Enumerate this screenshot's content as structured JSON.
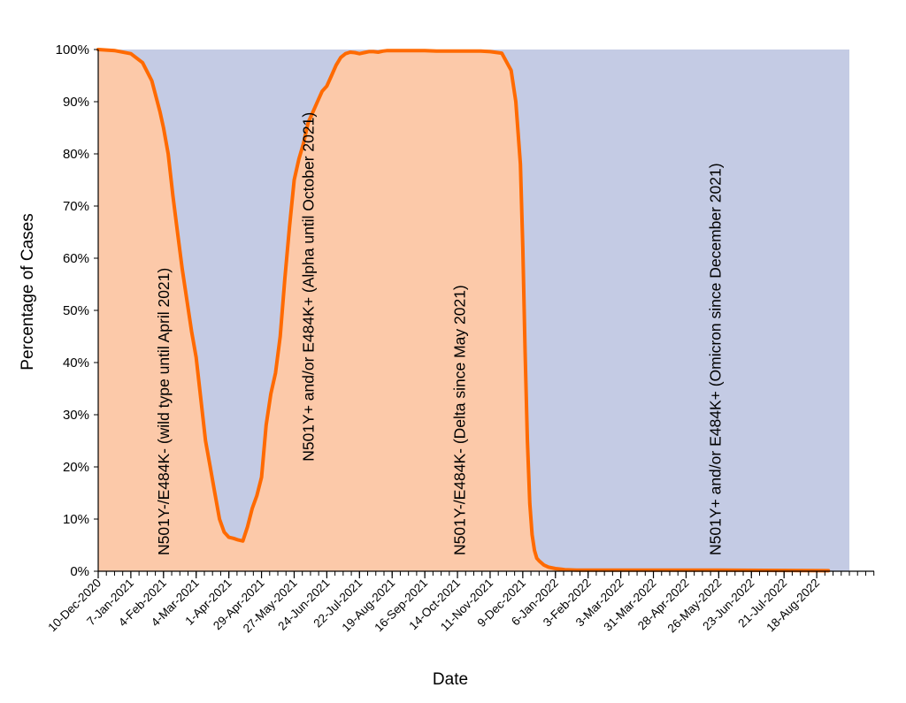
{
  "chart_data": {
    "type": "area",
    "xlabel": "Date",
    "ylabel": "Percentage of Cases",
    "xlim": [
      "2020-12-10",
      "2022-09-15"
    ],
    "ylim": [
      0,
      100
    ],
    "legend": "none",
    "grid": false,
    "yticks": [
      0,
      10,
      20,
      30,
      40,
      50,
      60,
      70,
      80,
      90,
      100
    ],
    "ytick_labels": [
      "0%",
      "10%",
      "20%",
      "30%",
      "40%",
      "50%",
      "60%",
      "70%",
      "80%",
      "90%",
      "100%"
    ],
    "xticks": [
      "2020-12-10",
      "2021-01-07",
      "2021-02-04",
      "2021-03-04",
      "2021-04-01",
      "2021-04-29",
      "2021-05-27",
      "2021-06-24",
      "2021-07-22",
      "2021-08-19",
      "2021-09-16",
      "2021-10-14",
      "2021-11-11",
      "2021-12-09",
      "2022-01-06",
      "2022-02-03",
      "2022-03-03",
      "2022-03-31",
      "2022-04-28",
      "2022-05-26",
      "2022-06-23",
      "2022-07-21",
      "2022-08-18"
    ],
    "xtick_labels": [
      "10-Dec-2020",
      "7-Jan-2021",
      "4-Feb-2021",
      "4-Mar-2021",
      "1-Apr-2021",
      "29-Apr-2021",
      "27-May-2021",
      "24-Jun-2021",
      "22-Jul-2021",
      "19-Aug-2021",
      "16-Sep-2021",
      "14-Oct-2021",
      "11-Nov-2021",
      "9-Dec-2021",
      "6-Jan-2022",
      "3-Feb-2022",
      "3-Mar-2022",
      "31-Mar-2022",
      "28-Apr-2022",
      "26-May-2022",
      "23-Jun-2022",
      "21-Jul-2022",
      "18-Aug-2022"
    ],
    "series": [
      {
        "x": [
          "2020-12-10",
          "2020-12-24",
          "2021-01-07",
          "2021-01-17",
          "2021-01-25",
          "2021-02-01",
          "2021-02-04",
          "2021-02-08",
          "2021-02-12",
          "2021-02-16",
          "2021-02-20",
          "2021-02-24",
          "2021-02-28",
          "2021-03-04",
          "2021-03-08",
          "2021-03-12",
          "2021-03-16",
          "2021-03-20",
          "2021-03-24",
          "2021-03-28",
          "2021-04-01",
          "2021-04-05",
          "2021-04-09",
          "2021-04-13",
          "2021-04-17",
          "2021-04-21",
          "2021-04-25",
          "2021-04-29",
          "2021-05-03",
          "2021-05-07",
          "2021-05-11",
          "2021-05-15",
          "2021-05-19",
          "2021-05-23",
          "2021-05-27",
          "2021-05-31",
          "2021-06-04",
          "2021-06-08",
          "2021-06-12",
          "2021-06-16",
          "2021-06-20",
          "2021-06-24",
          "2021-06-28",
          "2021-07-02",
          "2021-07-06",
          "2021-07-10",
          "2021-07-14",
          "2021-07-18",
          "2021-07-22",
          "2021-07-26",
          "2021-07-30",
          "2021-08-03",
          "2021-08-07",
          "2021-08-11",
          "2021-08-15",
          "2021-08-19",
          "2021-08-29",
          "2021-09-08",
          "2021-09-16",
          "2021-09-26",
          "2021-10-06",
          "2021-10-14",
          "2021-10-24",
          "2021-11-03",
          "2021-11-11",
          "2021-11-21",
          "2021-11-29",
          "2021-12-03",
          "2021-12-07",
          "2021-12-09",
          "2021-12-11",
          "2021-12-13",
          "2021-12-15",
          "2021-12-17",
          "2021-12-19",
          "2021-12-21",
          "2021-12-23",
          "2021-12-27",
          "2021-12-31",
          "2022-01-06",
          "2022-01-14",
          "2022-01-24",
          "2022-02-03",
          "2022-03-03",
          "2022-04-28",
          "2022-05-26",
          "2022-08-28"
        ],
        "y": [
          100,
          99.8,
          99.2,
          97.5,
          94,
          88,
          85,
          80,
          72,
          65,
          58,
          52,
          46,
          41,
          33,
          25,
          20,
          15,
          10,
          7.5,
          6.5,
          6.3,
          6.0,
          5.8,
          8.5,
          12,
          14.5,
          18,
          28,
          34,
          38,
          45,
          56,
          66,
          75,
          79,
          82,
          86,
          88,
          90,
          92,
          93,
          95,
          97,
          98.5,
          99.2,
          99.5,
          99.4,
          99.2,
          99.4,
          99.6,
          99.6,
          99.5,
          99.7,
          99.8,
          99.8,
          99.8,
          99.8,
          99.8,
          99.7,
          99.7,
          99.7,
          99.7,
          99.7,
          99.6,
          99.3,
          96,
          90,
          78,
          62,
          42,
          25,
          13,
          7,
          4,
          2.5,
          2,
          1.2,
          0.8,
          0.5,
          0.3,
          0.2,
          0.2,
          0.2,
          0.2,
          0.2,
          0.1
        ]
      }
    ],
    "colors": {
      "line": "#ff6a00",
      "fill_below": "#fcc9a9",
      "fill_above": "#c4cbe4"
    },
    "annotations": [
      {
        "text": "N501Y-/E484K- (wild type until April 2021)",
        "x": "2021-02-04",
        "y": 0,
        "rotation": -90
      },
      {
        "text": "N501Y+ and/or E484K+ (Alpha until October 2021)",
        "x": "2021-06-08",
        "y": 18,
        "rotation": -90
      },
      {
        "text": "N501Y-/E484K- (Delta since May 2021)",
        "x": "2021-10-16",
        "y": 0,
        "rotation": -90
      },
      {
        "text": "N501Y+ and/or E484K+ (Omicron since December 2021)",
        "x": "2022-05-23",
        "y": 0,
        "rotation": -90
      }
    ]
  }
}
